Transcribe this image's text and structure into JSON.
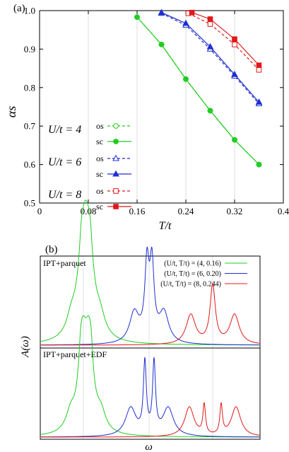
{
  "panel_a": {
    "label": "(a)",
    "legend": {
      "groups": [
        {
          "label": "U/t = 4",
          "color": "#22cc22",
          "os": "os",
          "sc": "sc"
        },
        {
          "label": "U/t = 6",
          "color": "#1f2fd0",
          "os": "os",
          "sc": "sc"
        },
        {
          "label": "U/t = 8",
          "color": "#e01818",
          "os": "os",
          "sc": "sc"
        }
      ]
    }
  },
  "panel_b": {
    "label": "(b)",
    "top_title": "IPT+parquet",
    "bottom_title": "IPT+parquet+EDF",
    "ylabel": "A(ω)",
    "xlabel": "ω",
    "legend": [
      {
        "label": "(U/t, T/t) = (4, 0.16)",
        "color": "#22cc22"
      },
      {
        "label": "(U/t, T/t) = (6, 0.20)",
        "color": "#1f2fd0"
      },
      {
        "label": "(U/t, T/t) = (8, 0.244)",
        "color": "#e01818"
      }
    ]
  },
  "chart_data": [
    {
      "type": "line",
      "xlabel": "T/t",
      "ylabel": "αs",
      "xlim": [
        0,
        0.4
      ],
      "ylim": [
        0.5,
        1.0
      ],
      "xticks": [
        "0",
        "0.08",
        "0.16",
        "0.24",
        "0.32",
        "0.4"
      ],
      "yticks": [
        "0.5",
        "0.6",
        "0.7",
        "0.8",
        "0.9",
        "1.0"
      ],
      "grid": "vertical",
      "series": [
        {
          "name": "os",
          "group": "U/t = 4",
          "color": "#22cc22",
          "marker": "open-circle",
          "dash": true,
          "x": [
            0.16,
            0.2,
            0.24,
            0.28,
            0.32,
            0.36
          ],
          "y": [
            0.983,
            0.912,
            0.822,
            0.74,
            0.664,
            0.6
          ]
        },
        {
          "name": "sc",
          "group": "U/t = 4",
          "color": "#22cc22",
          "marker": "filled-circle",
          "dash": false,
          "x": [
            0.16,
            0.2,
            0.24,
            0.28,
            0.32,
            0.36
          ],
          "y": [
            0.983,
            0.912,
            0.822,
            0.74,
            0.664,
            0.6
          ]
        },
        {
          "name": "os",
          "group": "U/t = 6",
          "color": "#1f2fd0",
          "marker": "open-triangle",
          "dash": true,
          "x": [
            0.2,
            0.24,
            0.28,
            0.32,
            0.36
          ],
          "y": [
            0.993,
            0.962,
            0.9,
            0.83,
            0.758
          ]
        },
        {
          "name": "sc",
          "group": "U/t = 6",
          "color": "#1f2fd0",
          "marker": "filled-triangle",
          "dash": false,
          "x": [
            0.2,
            0.24,
            0.28,
            0.32,
            0.36
          ],
          "y": [
            0.995,
            0.967,
            0.906,
            0.834,
            0.762
          ]
        },
        {
          "name": "os",
          "group": "U/t = 8",
          "color": "#e01818",
          "marker": "open-square",
          "dash": true,
          "x": [
            0.244,
            0.28,
            0.32,
            0.36
          ],
          "y": [
            0.993,
            0.965,
            0.912,
            0.846
          ]
        },
        {
          "name": "sc",
          "group": "U/t = 8",
          "color": "#e01818",
          "marker": "filled-square",
          "dash": false,
          "x": [
            0.25,
            0.28,
            0.32,
            0.36
          ],
          "y": [
            0.995,
            0.978,
            0.926,
            0.858
          ]
        }
      ]
    },
    {
      "type": "line",
      "xlabel": "ω",
      "ylabel": "A(ω)",
      "grid": "vertical",
      "panels": [
        {
          "title": "IPT+parquet",
          "series": [
            {
              "name": "(U/t, T/t) = (4, 0.16)",
              "color": "#22cc22",
              "peaks": [
                {
                  "center": 118,
                  "width": 9,
                  "height": 112
                },
                {
                  "center": 125,
                  "width": 9,
                  "height": 112
                },
                {
                  "center": 115,
                  "width": 2.5,
                  "height": 18
                },
                {
                  "center": 128,
                  "width": 2.5,
                  "height": 18
                },
                {
                  "center": 101,
                  "width": 8,
                  "height": 22
                },
                {
                  "center": 142,
                  "width": 8,
                  "height": 22
                }
              ]
            },
            {
              "name": "(U/t, T/t) = (6, 0.20)",
              "color": "#1f2fd0",
              "peaks": [
                {
                  "center": 208,
                  "width": 3.5,
                  "height": 98
                },
                {
                  "center": 215,
                  "width": 3.5,
                  "height": 98
                },
                {
                  "center": 190,
                  "width": 8,
                  "height": 42
                },
                {
                  "center": 232,
                  "width": 8,
                  "height": 42
                },
                {
                  "center": 211,
                  "width": 12,
                  "height": 10
                }
              ]
            },
            {
              "name": "(U/t, T/t) = (8, 0.244)",
              "color": "#e01818",
              "peaks": [
                {
                  "center": 301,
                  "width": 4.5,
                  "height": 82
                },
                {
                  "center": 270,
                  "width": 8,
                  "height": 42
                },
                {
                  "center": 332,
                  "width": 8,
                  "height": 42
                }
              ]
            }
          ]
        },
        {
          "title": "IPT+parquet+EDF",
          "series": [
            {
              "name": "(U/t, T/t) = (4, 0.16)",
              "color": "#22cc22",
              "peaks": [
                {
                  "center": 117,
                  "width": 7,
                  "height": 112
                },
                {
                  "center": 126,
                  "width": 7,
                  "height": 112
                },
                {
                  "center": 114,
                  "width": 2.5,
                  "height": 22
                },
                {
                  "center": 129,
                  "width": 2.5,
                  "height": 22
                },
                {
                  "center": 100,
                  "width": 8,
                  "height": 24
                },
                {
                  "center": 143,
                  "width": 8,
                  "height": 24
                }
              ]
            },
            {
              "name": "(U/t, T/t) = (6, 0.20)",
              "color": "#1f2fd0",
              "peaks": [
                {
                  "center": 205,
                  "width": 2.5,
                  "height": 100
                },
                {
                  "center": 218,
                  "width": 2.5,
                  "height": 100
                },
                {
                  "center": 185,
                  "width": 9,
                  "height": 40
                },
                {
                  "center": 238,
                  "width": 9,
                  "height": 40
                }
              ]
            },
            {
              "name": "(U/t, T/t) = (8, 0.244)",
              "color": "#e01818",
              "peaks": [
                {
                  "center": 289,
                  "width": 2.2,
                  "height": 42
                },
                {
                  "center": 313,
                  "width": 2.2,
                  "height": 42
                },
                {
                  "center": 268,
                  "width": 8,
                  "height": 42
                },
                {
                  "center": 334,
                  "width": 8,
                  "height": 42
                }
              ]
            }
          ]
        }
      ]
    }
  ]
}
